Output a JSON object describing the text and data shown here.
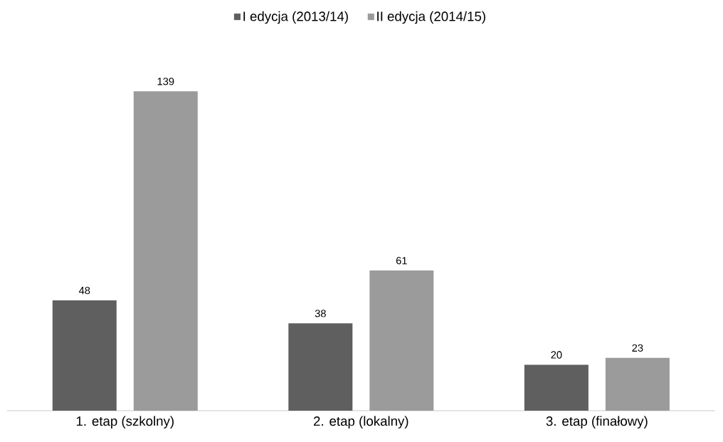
{
  "chart_data": {
    "type": "bar",
    "categories": [
      "1. etap (szkolny)",
      "2. etap (lokalny)",
      "3. etap (finałowy)"
    ],
    "series": [
      {
        "name": "I edycja (2013/14)",
        "color": "#5f5f5f",
        "values": [
          48,
          38,
          20
        ]
      },
      {
        "name": "II edycja (2014/15)",
        "color": "#9b9b9b",
        "values": [
          139,
          61,
          23
        ]
      }
    ],
    "data_labels": true,
    "legend": "top"
  }
}
